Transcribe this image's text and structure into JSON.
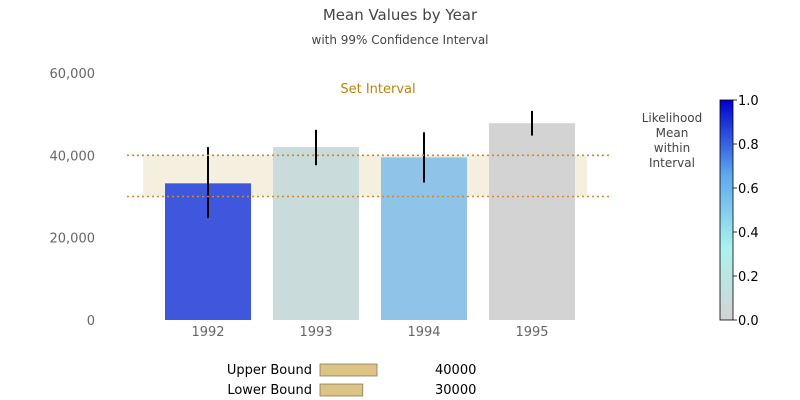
{
  "chart_data": {
    "type": "bar",
    "title": "Mean Values by Year",
    "subtitle": "with 99% Confidence Interval",
    "categories": [
      "1992",
      "1993",
      "1994",
      "1995"
    ],
    "values": [
      33200,
      42000,
      39500,
      47800
    ],
    "error_low": [
      24800,
      37600,
      33400,
      44800
    ],
    "error_high": [
      42000,
      46200,
      45600,
      50800
    ],
    "bar_colors": [
      "#3f57dc",
      "#c9dbdb",
      "#8fc4e8",
      "#d3d3d3"
    ],
    "ylim": [
      0,
      60000
    ],
    "yticks": [
      0,
      20000,
      40000,
      60000
    ],
    "ytick_labels": [
      "0",
      "20,000",
      "40,000",
      "60,000"
    ],
    "interval": {
      "label": "Set Interval",
      "low": 30000,
      "high": 40000,
      "color": "#cd8a2a",
      "fill": "#f5efe0"
    },
    "colorbar": {
      "label_lines": [
        "Likelihood",
        "Mean",
        "within",
        "Interval"
      ],
      "ticks": [
        "0.0",
        "0.2",
        "0.4",
        "0.6",
        "0.8",
        "1.0"
      ],
      "colors": [
        "#d3d3d3",
        "#aaf2ee",
        "#5fa8ee",
        "#0000cd"
      ]
    },
    "sliders": [
      {
        "label": "Upper Bound",
        "value": "40000",
        "fraction": 0.6
      },
      {
        "label": "Lower Bound",
        "value": "30000",
        "fraction": 0.45
      }
    ]
  }
}
